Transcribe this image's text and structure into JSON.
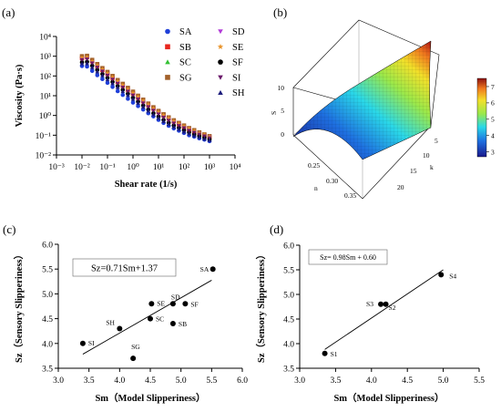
{
  "panel_labels": [
    "(a)",
    "(b)",
    "(c)",
    "(d)"
  ],
  "colors": {
    "SA": "#1f3fd8",
    "SB": "#e8261e",
    "SC": "#34c134",
    "SD": "#b23bd8",
    "SE": "#e8932a",
    "SF": "#000000",
    "SG": "#a2602a",
    "SI": "#6a1a6a",
    "SH": "#1c1c7c"
  },
  "chart_data": [
    {
      "id": "a",
      "type": "scatter",
      "xscale": "log",
      "yscale": "log",
      "xlim": [
        0.001,
        10000
      ],
      "ylim": [
        0.01,
        10000
      ],
      "xlabel": "Shear rate  (1/s)",
      "ylabel": "Viscosity  (Pa·s)",
      "xticks": [
        "10⁻³",
        "10⁻²",
        "10⁻¹",
        "10⁰",
        "10¹",
        "10²",
        "10³",
        "10⁴"
      ],
      "yticks": [
        "10⁻²",
        "10⁻¹",
        "10⁰",
        "10¹",
        "10²",
        "10³",
        "10⁴"
      ],
      "legend": [
        "SA",
        "SB",
        "SC",
        "SG",
        "SD",
        "SE",
        "SF",
        "SI",
        "SH"
      ],
      "legend_placement": "top-right",
      "x": [
        0.01,
        0.0158,
        0.0251,
        0.0398,
        0.0631,
        0.1,
        0.158,
        0.251,
        0.398,
        0.631,
        1,
        1.58,
        2.51,
        3.98,
        6.31,
        10,
        15.8,
        25.1,
        39.8,
        63.1,
        100,
        158,
        251,
        398,
        631,
        1000
      ],
      "series": [
        {
          "name": "SA",
          "values": [
            320,
            300,
            180,
            110,
            70,
            45,
            28,
            17,
            11,
            7,
            4.5,
            3,
            2,
            1.3,
            0.9,
            0.6,
            0.42,
            0.3,
            0.22,
            0.17,
            0.13,
            0.1,
            0.085,
            0.07,
            0.06,
            0.05
          ]
        },
        {
          "name": "SB",
          "values": [
            800,
            900,
            550,
            320,
            200,
            130,
            80,
            50,
            32,
            20,
            13,
            8,
            5.2,
            3.3,
            2.2,
            1.5,
            1,
            0.7,
            0.5,
            0.36,
            0.27,
            0.2,
            0.15,
            0.12,
            0.1,
            0.08
          ]
        },
        {
          "name": "SC",
          "values": [
            600,
            650,
            400,
            250,
            150,
            95,
            60,
            38,
            24,
            15,
            9.5,
            6,
            3.8,
            2.4,
            1.5,
            1,
            0.68,
            0.48,
            0.35,
            0.27,
            0.2,
            0.15,
            0.12,
            0.1,
            0.085,
            0.07
          ]
        },
        {
          "name": "SG",
          "values": [
            1000,
            1050,
            650,
            400,
            250,
            160,
            100,
            62,
            40,
            25,
            16,
            10,
            6.3,
            4,
            2.6,
            1.7,
            1.15,
            0.8,
            0.57,
            0.42,
            0.31,
            0.23,
            0.18,
            0.14,
            0.11,
            0.09
          ]
        },
        {
          "name": "SD",
          "values": [
            700,
            750,
            470,
            290,
            180,
            115,
            72,
            45,
            29,
            18,
            11.5,
            7.3,
            4.6,
            2.9,
            1.9,
            1.25,
            0.85,
            0.6,
            0.44,
            0.33,
            0.25,
            0.19,
            0.15,
            0.12,
            0.1,
            0.08
          ]
        },
        {
          "name": "SE",
          "values": [
            850,
            900,
            560,
            350,
            220,
            140,
            88,
            55,
            35,
            22,
            14,
            9,
            5.7,
            3.6,
            2.3,
            1.55,
            1.05,
            0.74,
            0.53,
            0.39,
            0.29,
            0.22,
            0.17,
            0.13,
            0.11,
            0.085
          ]
        },
        {
          "name": "SF",
          "values": [
            500,
            520,
            330,
            200,
            125,
            80,
            50,
            31,
            20,
            12.5,
            8,
            5,
            3.2,
            2,
            1.3,
            0.88,
            0.6,
            0.43,
            0.31,
            0.24,
            0.18,
            0.14,
            0.11,
            0.09,
            0.075,
            0.062
          ]
        },
        {
          "name": "SI",
          "values": [
            650,
            700,
            440,
            270,
            170,
            105,
            66,
            41,
            26,
            16.5,
            10.5,
            6.6,
            4.2,
            2.7,
            1.75,
            1.15,
            0.78,
            0.55,
            0.4,
            0.3,
            0.23,
            0.17,
            0.135,
            0.11,
            0.09,
            0.072
          ]
        },
        {
          "name": "SH",
          "values": [
            420,
            430,
            270,
            165,
            105,
            66,
            42,
            26,
            16.5,
            10.5,
            6.7,
            4.2,
            2.7,
            1.7,
            1.1,
            0.74,
            0.5,
            0.36,
            0.26,
            0.2,
            0.15,
            0.12,
            0.095,
            0.078,
            0.065,
            0.055
          ]
        }
      ]
    },
    {
      "id": "b",
      "type": "surface",
      "axis_labels": [
        "S",
        "n",
        "k"
      ],
      "z_ticks": [
        "0",
        "5",
        "10"
      ],
      "n_ticks": [
        "0.25",
        "0.30",
        "0.35"
      ],
      "k_ticks": [
        "5",
        "10",
        "15",
        "20"
      ],
      "colorbar_ticks": [
        "3",
        "4",
        "5",
        "6",
        "7"
      ],
      "colorbar_range": [
        2.7,
        7.5
      ]
    },
    {
      "id": "c",
      "type": "scatter",
      "xlim": [
        3.0,
        6.0
      ],
      "ylim": [
        3.5,
        6.0
      ],
      "xlabel": "Sm（Model Slipperiness）",
      "ylabel": "Sz（Sensory Slipperiness）",
      "xticks": [
        "3.0",
        "3.5",
        "4.0",
        "4.5",
        "5.0",
        "5.5",
        "6.0"
      ],
      "yticks": [
        "3.5",
        "4.0",
        "4.5",
        "5.0",
        "5.5",
        "6.0"
      ],
      "equation": "Sz=0.71Sm+1.37",
      "fit": {
        "slope": 0.71,
        "intercept": 1.37,
        "x_range": [
          3.4,
          5.5
        ]
      },
      "points": [
        {
          "label": "SA",
          "x": 5.52,
          "y": 5.5
        },
        {
          "label": "SB",
          "x": 4.87,
          "y": 4.4
        },
        {
          "label": "SC",
          "x": 4.5,
          "y": 4.5
        },
        {
          "label": "SD",
          "x": 4.87,
          "y": 4.8
        },
        {
          "label": "SE",
          "x": 4.52,
          "y": 4.8
        },
        {
          "label": "SF",
          "x": 5.07,
          "y": 4.8
        },
        {
          "label": "SG",
          "x": 4.22,
          "y": 3.7
        },
        {
          "label": "SH",
          "x": 4.0,
          "y": 4.3
        },
        {
          "label": "SI",
          "x": 3.4,
          "y": 4.0
        }
      ]
    },
    {
      "id": "d",
      "type": "scatter",
      "xlim": [
        3.0,
        5.5
      ],
      "ylim": [
        3.5,
        6.0
      ],
      "xlabel": "Sm（Model Slipperiness）",
      "ylabel": "Sz（Sensory Slipperiness）",
      "xticks": [
        "3.0",
        "3.5",
        "4.0",
        "4.5",
        "5.0",
        "5.5"
      ],
      "yticks": [
        "3.5",
        "4.0",
        "4.5",
        "5.0",
        "5.5",
        "6.0"
      ],
      "equation": "Sz= 0.98Sm + 0.60",
      "fit": {
        "slope": 0.98,
        "intercept": 0.6,
        "x_range": [
          3.35,
          5.0
        ]
      },
      "points": [
        {
          "label": "S1",
          "x": 3.35,
          "y": 3.8
        },
        {
          "label": "S2",
          "x": 4.2,
          "y": 4.8
        },
        {
          "label": "S3",
          "x": 4.13,
          "y": 4.8
        },
        {
          "label": "S4",
          "x": 4.97,
          "y": 5.4
        }
      ]
    }
  ]
}
